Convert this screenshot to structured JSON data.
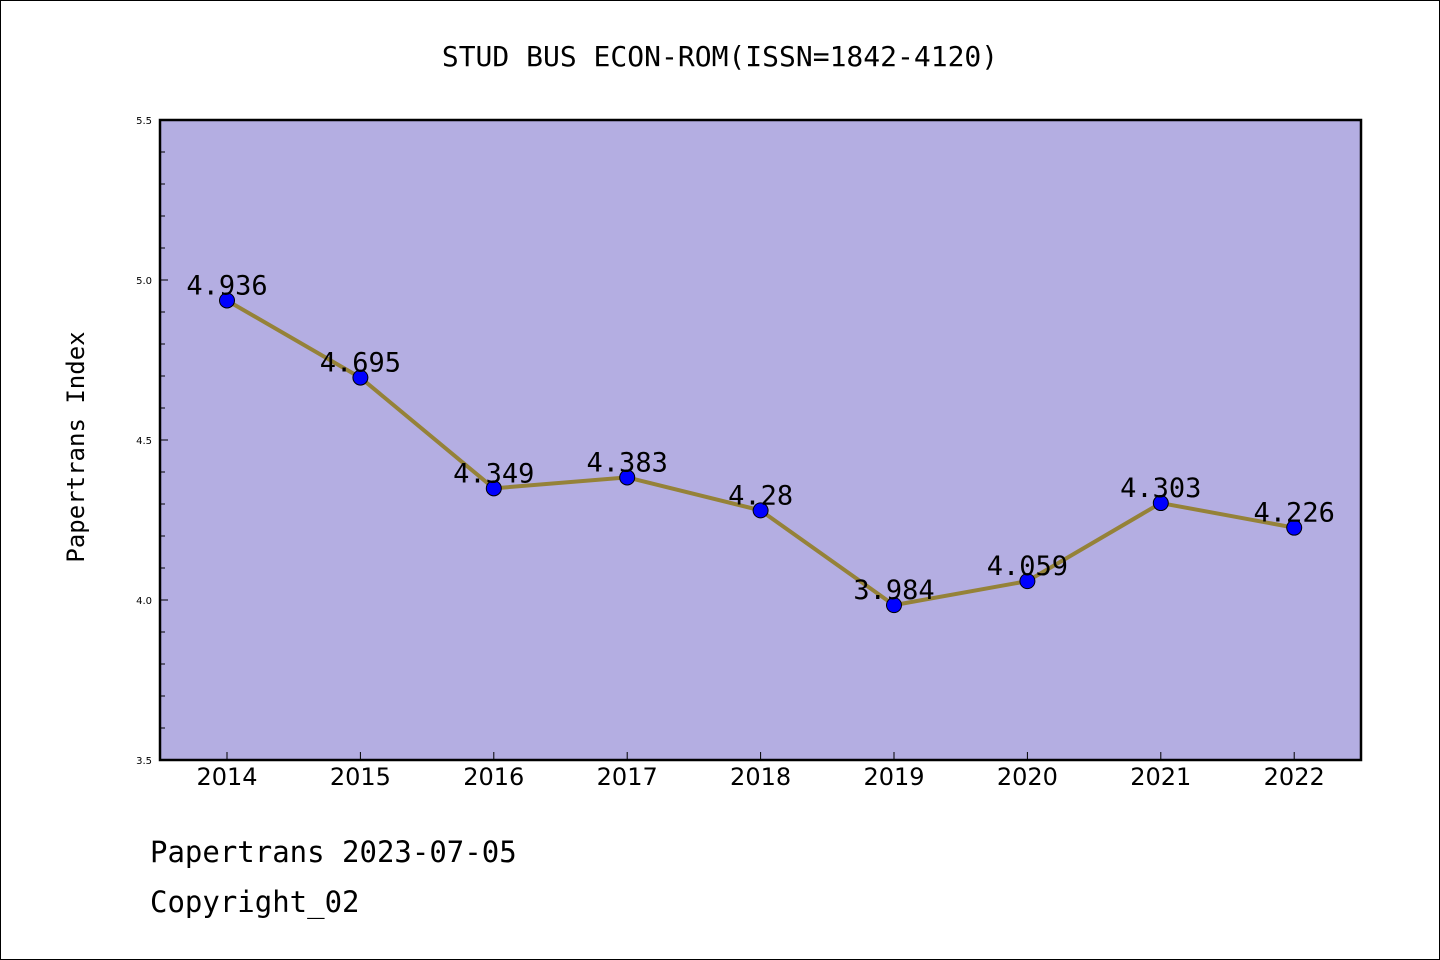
{
  "chart_data": {
    "type": "line",
    "title": "STUD BUS ECON-ROM(ISSN=1842-4120)",
    "xlabel": "",
    "ylabel": "Papertrans Index",
    "categories": [
      "2014",
      "2015",
      "2016",
      "2017",
      "2018",
      "2019",
      "2020",
      "2021",
      "2022"
    ],
    "series": [
      {
        "values": [
          4.936,
          4.695,
          4.349,
          4.383,
          4.28,
          3.984,
          4.059,
          4.303,
          4.226
        ],
        "labels": [
          "4.936",
          "4.695",
          "4.349",
          "4.383",
          "4.28",
          "3.984",
          "4.059",
          "4.303",
          "4.226"
        ]
      }
    ],
    "yticks": [
      "3.5",
      "4.0",
      "4.5",
      "5.0",
      "5.5"
    ],
    "ylim": [
      3.5,
      5.5
    ],
    "grid": false,
    "colors": {
      "plot_background": "#b4aee2",
      "line": "#958238",
      "marker": "#0000ff"
    }
  },
  "footer": {
    "line1": "Papertrans 2023-07-05",
    "line2": "Copyright_02"
  }
}
